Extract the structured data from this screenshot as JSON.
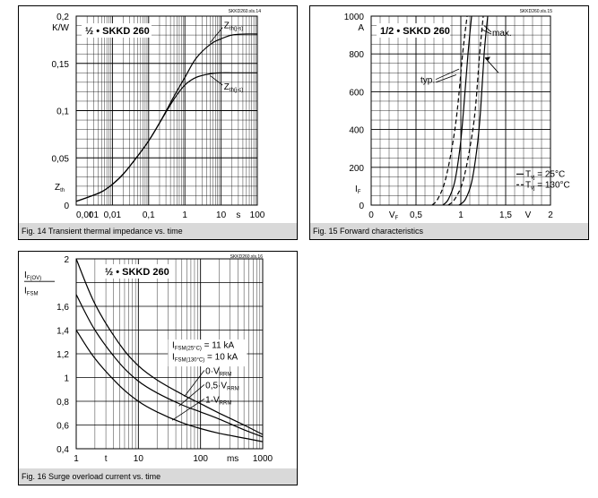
{
  "chart_data": [
    {
      "type": "line",
      "id": "SKKD260.xls.14",
      "title": "½ • SKKD 260",
      "caption": "Fig. 14 Transient thermal impedance vs. time",
      "xscale": "log",
      "xlim": [
        0.001,
        100
      ],
      "ylim": [
        0,
        0.2
      ],
      "xticks": [
        "0,001",
        "0,01",
        "0,1",
        "1",
        "10",
        "100"
      ],
      "yticks": [
        "0",
        "0,05",
        "0,1",
        "0,15",
        "0,2"
      ],
      "x_symbol": "t",
      "x_unit": "s",
      "y_symbol": "Z",
      "y_symbol_sub": "th",
      "y_unit": "K/W",
      "series": [
        {
          "name": "Z",
          "name_sub": "th(j-s)",
          "x": [
            0.001,
            0.002,
            0.005,
            0.01,
            0.02,
            0.05,
            0.1,
            0.2,
            0.5,
            1,
            2,
            5,
            10,
            20,
            50,
            100
          ],
          "y": [
            0.004,
            0.008,
            0.014,
            0.022,
            0.033,
            0.052,
            0.068,
            0.087,
            0.115,
            0.135,
            0.155,
            0.17,
            0.176,
            0.18,
            0.181,
            0.181
          ]
        },
        {
          "name": "Z",
          "name_sub": "th(j-c)",
          "x": [
            0.001,
            0.002,
            0.005,
            0.01,
            0.02,
            0.05,
            0.1,
            0.2,
            0.5,
            1,
            2,
            5,
            10,
            20,
            50,
            100
          ],
          "y": [
            0.004,
            0.008,
            0.014,
            0.022,
            0.033,
            0.052,
            0.068,
            0.087,
            0.112,
            0.127,
            0.135,
            0.139,
            0.14,
            0.14,
            0.14,
            0.14
          ]
        }
      ]
    },
    {
      "type": "line",
      "id": "SKKD260.xls.15",
      "title": "1/2 • SKKD 260",
      "caption": "Fig. 15 Forward characteristics",
      "xlim": [
        0,
        2
      ],
      "ylim": [
        0,
        1000
      ],
      "xticks": [
        "0",
        "0,5",
        "1",
        "1,5",
        "2"
      ],
      "yticks": [
        "0",
        "200",
        "400",
        "600",
        "800",
        "1000"
      ],
      "x_symbol": "V",
      "x_symbol_sub": "F",
      "x_unit": "V",
      "y_symbol": "I",
      "y_symbol_sub": "F",
      "y_unit": "A",
      "annotations": [
        "typ.",
        "max."
      ],
      "series": [
        {
          "name": "T",
          "name_sub": "vj",
          "name_suffix": " =  25°C",
          "variant": "typ",
          "style": "solid",
          "x": [
            0.8,
            0.86,
            0.93,
            0.99,
            1.03,
            1.08,
            1.12
          ],
          "y": [
            0,
            30,
            120,
            300,
            500,
            800,
            1000
          ]
        },
        {
          "name": "T",
          "name_sub": "vj",
          "name_suffix": " = 130°C",
          "variant": "typ",
          "style": "dashed",
          "x": [
            0.68,
            0.74,
            0.82,
            0.9,
            0.96,
            1.02,
            1.07
          ],
          "y": [
            0,
            30,
            120,
            300,
            500,
            800,
            1000
          ]
        },
        {
          "name": "T",
          "name_sub": "vj",
          "name_suffix": " =  25°C",
          "variant": "max",
          "style": "solid",
          "x": [
            0.98,
            1.05,
            1.12,
            1.18,
            1.22,
            1.26,
            1.3
          ],
          "y": [
            0,
            30,
            120,
            300,
            500,
            800,
            1000
          ]
        },
        {
          "name": "T",
          "name_sub": "vj",
          "name_suffix": " = 130°C",
          "variant": "max",
          "style": "dashed",
          "x": [
            0.86,
            0.93,
            1.02,
            1.1,
            1.16,
            1.21,
            1.25
          ],
          "y": [
            0,
            30,
            120,
            300,
            500,
            800,
            1000
          ]
        }
      ]
    },
    {
      "type": "line",
      "id": "SKKD260.xls.16",
      "title": "½ • SKKD 260",
      "caption": "Fig. 16 Surge overload current vs. time",
      "xscale": "log",
      "xlim": [
        1,
        1000
      ],
      "ylim": [
        0.4,
        2.0
      ],
      "xticks": [
        "1",
        "10",
        "100",
        "1000"
      ],
      "yticks": [
        "0,4",
        "0,6",
        "0,8",
        "1",
        "1,2",
        "1,4",
        "1,6",
        "2"
      ],
      "x_symbol": "t",
      "x_unit": "ms",
      "y_symbol": "I",
      "y_symbol_sub": "F(OV)",
      "y_denominator": "I",
      "y_denominator_sub": "FSM",
      "annotations": [
        {
          "text": "I",
          "sub": "FSM(25°C)",
          "suffix": " = 11 kA"
        },
        {
          "text": "I",
          "sub": "FSM(130°C)",
          "suffix": " = 10 kA"
        }
      ],
      "series": [
        {
          "name": "0·V",
          "name_sub": "RRM",
          "x": [
            1,
            2,
            5,
            10,
            20,
            50,
            100,
            200,
            500,
            1000
          ],
          "y": [
            2.0,
            1.62,
            1.28,
            1.1,
            0.98,
            0.86,
            0.78,
            0.7,
            0.6,
            0.52
          ]
        },
        {
          "name": "0,5·V",
          "name_sub": "RRM",
          "x": [
            1,
            2,
            5,
            10,
            20,
            50,
            100,
            200,
            500,
            1000
          ],
          "y": [
            1.7,
            1.4,
            1.12,
            0.97,
            0.87,
            0.77,
            0.71,
            0.65,
            0.56,
            0.5
          ]
        },
        {
          "name": "1·V",
          "name_sub": "RRM",
          "x": [
            1,
            2,
            5,
            10,
            20,
            50,
            100,
            200,
            500,
            1000
          ],
          "y": [
            1.4,
            1.16,
            0.93,
            0.8,
            0.71,
            0.62,
            0.57,
            0.53,
            0.49,
            0.46
          ]
        }
      ]
    }
  ]
}
